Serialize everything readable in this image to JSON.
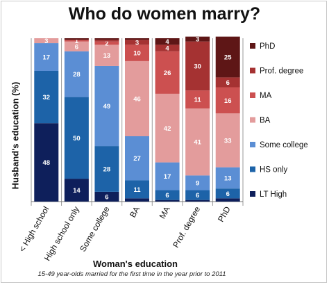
{
  "chart_data": {
    "type": "bar",
    "stacked": true,
    "title": "Who do women marry?",
    "xlabel": "Woman's education",
    "ylabel": "Husband's education (%)",
    "footnote": "15-49 year-olds married for the first time in the year prior to 2011",
    "ylim": [
      0,
      100
    ],
    "legend_position": "right",
    "categories": [
      "< High school",
      "High school only",
      "Some college",
      "BA",
      "MA",
      "Prof. degree",
      "PhD"
    ],
    "series": [
      {
        "name": "LT High",
        "color": "#0e1f5b",
        "values": [
          48,
          14,
          6,
          2,
          1,
          1,
          2
        ]
      },
      {
        "name": "HS only",
        "color": "#1d63a8",
        "values": [
          32,
          50,
          28,
          11,
          6,
          6,
          6
        ]
      },
      {
        "name": "Some college",
        "color": "#5b8ed4",
        "values": [
          17,
          28,
          49,
          27,
          17,
          9,
          13
        ]
      },
      {
        "name": "BA",
        "color": "#e39c9c",
        "values": [
          3,
          6,
          13,
          46,
          42,
          41,
          33
        ]
      },
      {
        "name": "MA",
        "color": "#cc5050",
        "values": [
          0,
          1,
          2,
          10,
          26,
          11,
          16
        ]
      },
      {
        "name": "Prof. degree",
        "color": "#a53232",
        "values": [
          0,
          0,
          1,
          3,
          4,
          30,
          6
        ]
      },
      {
        "name": "PhD",
        "color": "#5e1616",
        "values": [
          0,
          1,
          1,
          1,
          4,
          3,
          25
        ]
      }
    ],
    "data_labels": [
      [
        "48",
        "32",
        "17",
        "3",
        "",
        "",
        ""
      ],
      [
        "14",
        "50",
        "28",
        "6",
        "1",
        "",
        ""
      ],
      [
        "6",
        "28",
        "49",
        "13",
        "2",
        "",
        ""
      ],
      [
        "",
        "11",
        "27",
        "46",
        "10",
        "3",
        ""
      ],
      [
        "",
        "6",
        "17",
        "42",
        "26",
        "4",
        "4"
      ],
      [
        "",
        "6",
        "9",
        "41",
        "11",
        "30",
        "3"
      ],
      [
        "",
        "6",
        "13",
        "33",
        "16",
        "6",
        "25"
      ]
    ]
  }
}
